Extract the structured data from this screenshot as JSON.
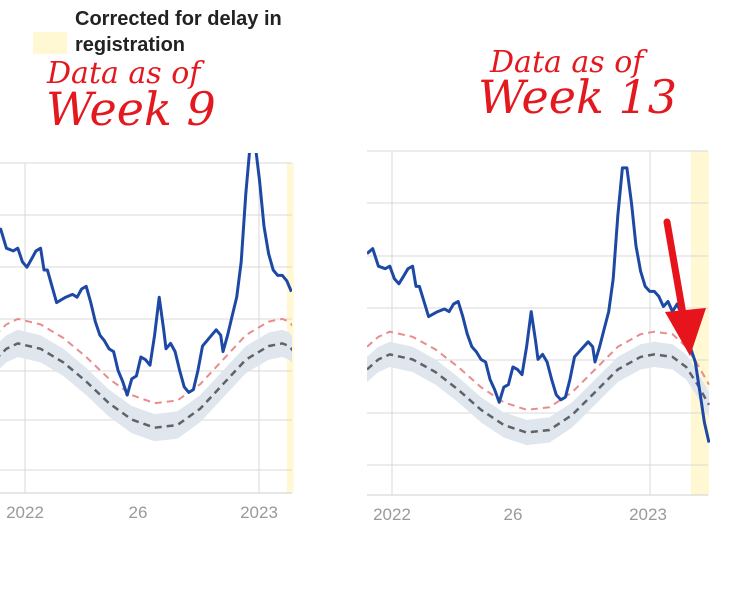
{
  "legend": {
    "label": "Corrected for delay in\nregistration",
    "swatch_color": "#fff8d2"
  },
  "annotations": {
    "left_line1": "Data as of",
    "left_line2": "Week 9",
    "right_line1": "Data as of",
    "right_line2": "Week 13"
  },
  "colors": {
    "observed": "#1d49a4",
    "baseline": "#5f6368",
    "upper": "#e88c8c",
    "band": "#dfe6ee",
    "correction": "#fff8d2",
    "arrow": "#e8141b",
    "grid": "#d9d9d9"
  },
  "chart_data": [
    {
      "type": "line",
      "panel": "Data as of Week 9",
      "x_ticks": [
        "2022",
        "26",
        "2023"
      ],
      "grid": true,
      "series": [
        {
          "role": "observed",
          "points": [
            [
              0,
              195
            ],
            [
              5,
              197
            ],
            [
              10,
              190
            ],
            [
              16,
              189
            ],
            [
              20,
              190
            ],
            [
              24,
              185
            ],
            [
              28,
              183
            ],
            [
              32,
              186
            ],
            [
              36,
              189
            ],
            [
              40,
              190
            ],
            [
              43,
              182
            ],
            [
              46,
              182
            ],
            [
              50,
              176
            ],
            [
              54,
              170
            ],
            [
              58,
              171
            ],
            [
              62,
              172
            ],
            [
              68,
              173
            ],
            [
              72,
              172
            ],
            [
              76,
              175
            ],
            [
              80,
              176
            ],
            [
              84,
              170
            ],
            [
              88,
              163
            ],
            [
              92,
              158
            ],
            [
              96,
              156
            ],
            [
              100,
              153
            ],
            [
              104,
              152
            ],
            [
              108,
              145
            ],
            [
              112,
              141
            ],
            [
              116,
              136
            ],
            [
              120,
              142
            ],
            [
              124,
              143
            ],
            [
              128,
              150
            ],
            [
              132,
              149
            ],
            [
              136,
              147
            ],
            [
              140,
              158
            ],
            [
              144,
              172
            ],
            [
              148,
              160
            ],
            [
              150,
              153
            ],
            [
              154,
              155
            ],
            [
              158,
              152
            ],
            [
              162,
              145
            ],
            [
              166,
              139
            ],
            [
              170,
              137
            ],
            [
              174,
              138
            ],
            [
              178,
              145
            ],
            [
              182,
              154
            ],
            [
              186,
              156
            ],
            [
              190,
              158
            ],
            [
              194,
              160
            ],
            [
              198,
              158
            ],
            [
              200,
              152
            ],
            [
              204,
              158
            ],
            [
              208,
              165
            ],
            [
              212,
              172
            ],
            [
              216,
              185
            ],
            [
              220,
              210
            ],
            [
              224,
              229
            ],
            [
              228,
              229
            ],
            [
              232,
              215
            ],
            [
              236,
              198
            ],
            [
              240,
              188
            ],
            [
              244,
              182
            ],
            [
              248,
              180
            ],
            [
              252,
              180
            ],
            [
              256,
              178
            ],
            [
              260,
              174
            ]
          ]
        },
        {
          "role": "baseline",
          "points": [
            [
              0,
              149
            ],
            [
              10,
              153
            ],
            [
              20,
              155
            ],
            [
              40,
              153
            ],
            [
              60,
              148
            ],
            [
              80,
              141
            ],
            [
              100,
              133
            ],
            [
              120,
              127
            ],
            [
              140,
              124
            ],
            [
              160,
              125
            ],
            [
              180,
              131
            ],
            [
              200,
              140
            ],
            [
              220,
              149
            ],
            [
              240,
              154
            ],
            [
              252,
              155
            ],
            [
              258,
              154
            ],
            [
              262,
              152
            ]
          ]
        },
        {
          "role": "upper",
          "points": [
            [
              0,
              158
            ],
            [
              10,
              162
            ],
            [
              20,
              164
            ],
            [
              40,
              162
            ],
            [
              60,
              157
            ],
            [
              80,
              150
            ],
            [
              100,
              142
            ],
            [
              120,
              136
            ],
            [
              140,
              133
            ],
            [
              160,
              134
            ],
            [
              180,
              140
            ],
            [
              200,
              149
            ],
            [
              220,
              158
            ],
            [
              240,
              163
            ],
            [
              252,
              164
            ],
            [
              258,
              163
            ],
            [
              262,
              161
            ]
          ]
        }
      ],
      "correction_region": [
        256,
        262
      ]
    },
    {
      "type": "line",
      "panel": "Data as of Week 13",
      "x_ticks": [
        "2022",
        "26",
        "2023"
      ],
      "grid": true,
      "series": [
        {
          "role": "observed",
          "points": [
            [
              0,
              195
            ],
            [
              5,
              197
            ],
            [
              10,
              190
            ],
            [
              16,
              189
            ],
            [
              20,
              190
            ],
            [
              24,
              185
            ],
            [
              28,
              183
            ],
            [
              32,
              186
            ],
            [
              36,
              189
            ],
            [
              40,
              190
            ],
            [
              43,
              182
            ],
            [
              46,
              182
            ],
            [
              50,
              176
            ],
            [
              54,
              170
            ],
            [
              58,
              171
            ],
            [
              62,
              172
            ],
            [
              68,
              173
            ],
            [
              72,
              172
            ],
            [
              76,
              175
            ],
            [
              80,
              176
            ],
            [
              84,
              170
            ],
            [
              88,
              163
            ],
            [
              92,
              158
            ],
            [
              96,
              156
            ],
            [
              100,
              153
            ],
            [
              104,
              152
            ],
            [
              108,
              145
            ],
            [
              112,
              141
            ],
            [
              116,
              136
            ],
            [
              120,
              142
            ],
            [
              124,
              143
            ],
            [
              128,
              150
            ],
            [
              132,
              149
            ],
            [
              136,
              147
            ],
            [
              140,
              158
            ],
            [
              144,
              172
            ],
            [
              148,
              160
            ],
            [
              150,
              153
            ],
            [
              154,
              155
            ],
            [
              158,
              152
            ],
            [
              162,
              145
            ],
            [
              166,
              139
            ],
            [
              170,
              137
            ],
            [
              174,
              138
            ],
            [
              178,
              145
            ],
            [
              182,
              154
            ],
            [
              186,
              156
            ],
            [
              190,
              158
            ],
            [
              194,
              160
            ],
            [
              198,
              158
            ],
            [
              200,
              152
            ],
            [
              204,
              158
            ],
            [
              208,
              165
            ],
            [
              212,
              172
            ],
            [
              216,
              185
            ],
            [
              220,
              210
            ],
            [
              224,
              229
            ],
            [
              228,
              229
            ],
            [
              232,
              215
            ],
            [
              236,
              198
            ],
            [
              240,
              188
            ],
            [
              244,
              182
            ],
            [
              248,
              180
            ],
            [
              252,
              180
            ],
            [
              256,
              178
            ],
            [
              260,
              174
            ],
            [
              264,
              176
            ],
            [
              268,
              172
            ],
            [
              272,
              175
            ],
            [
              276,
              171
            ],
            [
              282,
              160
            ],
            [
              288,
              152
            ],
            [
              292,
              140
            ],
            [
              296,
              128
            ],
            [
              300,
              120
            ]
          ]
        },
        {
          "role": "baseline",
          "points": [
            [
              0,
              149
            ],
            [
              10,
              153
            ],
            [
              20,
              155
            ],
            [
              40,
              153
            ],
            [
              60,
              148
            ],
            [
              80,
              141
            ],
            [
              100,
              133
            ],
            [
              120,
              127
            ],
            [
              140,
              124
            ],
            [
              160,
              125
            ],
            [
              180,
              131
            ],
            [
              200,
              140
            ],
            [
              220,
              149
            ],
            [
              240,
              154
            ],
            [
              252,
              155
            ],
            [
              268,
              154
            ],
            [
              280,
              150
            ],
            [
              290,
              143
            ],
            [
              300,
              135
            ]
          ]
        },
        {
          "role": "upper",
          "points": [
            [
              0,
              158
            ],
            [
              10,
              162
            ],
            [
              20,
              164
            ],
            [
              40,
              162
            ],
            [
              60,
              157
            ],
            [
              80,
              150
            ],
            [
              100,
              142
            ],
            [
              120,
              136
            ],
            [
              140,
              133
            ],
            [
              160,
              134
            ],
            [
              180,
              140
            ],
            [
              200,
              149
            ],
            [
              220,
              158
            ],
            [
              240,
              163
            ],
            [
              252,
              164
            ],
            [
              268,
              163
            ],
            [
              280,
              158
            ],
            [
              290,
              151
            ],
            [
              300,
              143
            ]
          ]
        }
      ],
      "correction_region": [
        284,
        300
      ]
    }
  ]
}
